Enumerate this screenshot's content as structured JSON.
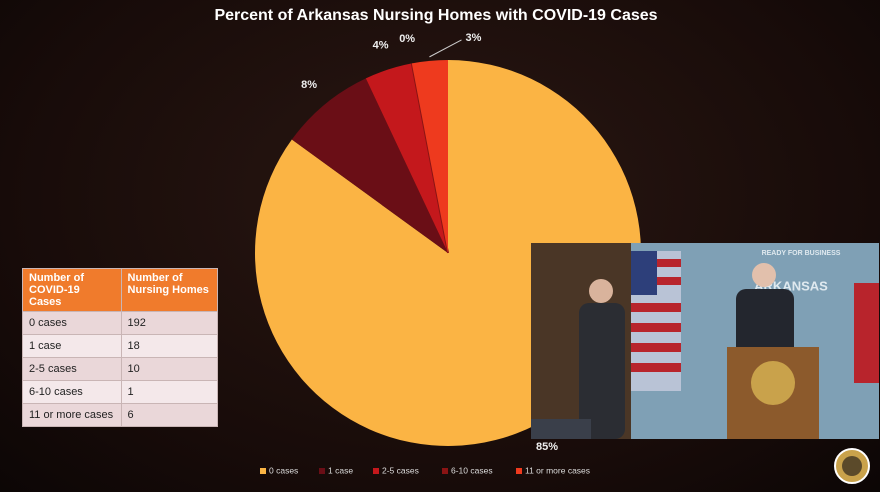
{
  "chart_data": {
    "type": "pie",
    "title": "Percent of Arkansas Nursing Homes with COVID-19 Cases",
    "categories": [
      "0 cases",
      "1 case",
      "2-5 cases",
      "6-10 cases",
      "11 or more cases"
    ],
    "values": [
      85,
      8,
      4,
      0,
      3
    ],
    "value_labels": [
      "85%",
      "8%",
      "4%",
      "0%",
      "3%"
    ],
    "colors": [
      "#fbb444",
      "#6a0e16",
      "#c4181c",
      "#8a1414",
      "#ee3a1e"
    ],
    "legend": "bottom"
  },
  "table": {
    "header": [
      "Number of COVID-19 Cases",
      "Number of Nursing Homes"
    ],
    "rows": [
      [
        "0 cases",
        192
      ],
      [
        "1 case",
        18
      ],
      [
        "2-5 cases",
        10
      ],
      [
        "6-10 cases",
        1
      ],
      [
        "11 or more cases",
        6
      ]
    ]
  },
  "video": {
    "backdrop": [
      "ARKANSAS",
      "READY FOR BUSINESS"
    ]
  }
}
